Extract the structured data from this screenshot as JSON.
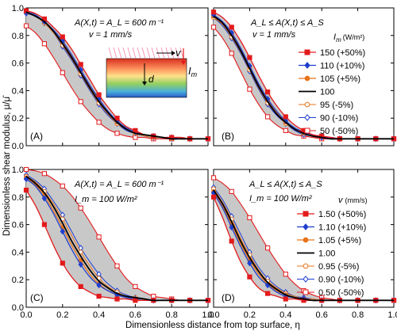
{
  "figure": {
    "ylabel": "Dimensionless shear modulus, μ/μ̄",
    "xlabel": "Dimensionless distance from top surface, η"
  },
  "colors": {
    "red": "#e31a1c",
    "blue": "#1f3fcf",
    "orange": "#e8731a",
    "black": "#000000",
    "band": "#c8c8c8"
  },
  "legend_top": {
    "title": "I",
    "title_sub": "m",
    "title_unit": "(W/m²)",
    "entries": [
      {
        "label": "150 (+50%)",
        "color": "#e31a1c",
        "marker": "square-filled"
      },
      {
        "label": "110 (+10%)",
        "color": "#1f3fcf",
        "marker": "diamond-filled"
      },
      {
        "label": "105   (+5%)",
        "color": "#e8731a",
        "marker": "circle-filled"
      },
      {
        "label": "100",
        "color": "#000000",
        "marker": "line"
      },
      {
        "label": "95   (-5%)",
        "color": "#e8731a",
        "marker": "circle-open"
      },
      {
        "label": "90  (-10%)",
        "color": "#1f3fcf",
        "marker": "diamond-open"
      },
      {
        "label": "50  (-50%)",
        "color": "#e31a1c",
        "marker": "square-open"
      }
    ]
  },
  "legend_bottom": {
    "title": "v",
    "title_unit": "(mm/s)",
    "entries": [
      {
        "label": "1.50 (+50%)",
        "color": "#e31a1c",
        "marker": "square-filled"
      },
      {
        "label": "1.10 (+10%)",
        "color": "#1f3fcf",
        "marker": "diamond-filled"
      },
      {
        "label": "1.05   (+5%)",
        "color": "#e8731a",
        "marker": "circle-filled"
      },
      {
        "label": "1.00",
        "color": "#000000",
        "marker": "line"
      },
      {
        "label": "0.95   (-5%)",
        "color": "#e8731a",
        "marker": "circle-open"
      },
      {
        "label": "0.90  (-10%)",
        "color": "#1f3fcf",
        "marker": "diamond-open"
      },
      {
        "label": "0.50  (-50%)",
        "color": "#e31a1c",
        "marker": "square-open"
      }
    ]
  },
  "inset": {
    "v_label": "v",
    "d_label": "d",
    "i_label": "I",
    "i_sub": "m"
  },
  "chart_data": [
    {
      "type": "line",
      "panel_label": "(A)",
      "annotation_1": "A(X,t) = A_L = 600 m⁻¹",
      "annotation_2": "v = 1 mm/s",
      "xlim": [
        0,
        1
      ],
      "ylim": [
        0,
        1
      ],
      "xticks": [
        "0.0",
        "0.2",
        "0.4",
        "0.6",
        "0.8",
        "1.0"
      ],
      "yticks": [
        "0.0",
        "0.2",
        "0.4",
        "0.6",
        "0.8",
        "1.0"
      ],
      "x": [
        0,
        0.05,
        0.1,
        0.15,
        0.2,
        0.25,
        0.3,
        0.35,
        0.4,
        0.45,
        0.5,
        0.55,
        0.6,
        0.65,
        0.7,
        0.75,
        0.8,
        0.85,
        0.9,
        0.95,
        1.0
      ],
      "series": [
        {
          "name": "150 (+50%)",
          "values": [
            0.98,
            0.96,
            0.92,
            0.86,
            0.79,
            0.7,
            0.59,
            0.48,
            0.37,
            0.28,
            0.2,
            0.14,
            0.11,
            0.08,
            0.07,
            0.06,
            0.06,
            0.06,
            0.05,
            0.05,
            0.05
          ]
        },
        {
          "name": "110 (+10%)",
          "values": [
            0.97,
            0.95,
            0.9,
            0.84,
            0.76,
            0.66,
            0.55,
            0.44,
            0.34,
            0.25,
            0.18,
            0.13,
            0.1,
            0.08,
            0.07,
            0.06,
            0.06,
            0.05,
            0.05,
            0.05,
            0.05
          ]
        },
        {
          "name": "105 (+5%)",
          "values": [
            0.97,
            0.95,
            0.9,
            0.84,
            0.75,
            0.65,
            0.54,
            0.43,
            0.33,
            0.24,
            0.17,
            0.13,
            0.1,
            0.08,
            0.07,
            0.06,
            0.06,
            0.05,
            0.05,
            0.05,
            0.05
          ]
        },
        {
          "name": "100",
          "values": [
            0.97,
            0.94,
            0.9,
            0.83,
            0.74,
            0.64,
            0.53,
            0.42,
            0.32,
            0.24,
            0.17,
            0.12,
            0.09,
            0.08,
            0.07,
            0.06,
            0.05,
            0.05,
            0.05,
            0.05,
            0.05
          ]
        },
        {
          "name": "95 (-5%)",
          "values": [
            0.97,
            0.94,
            0.89,
            0.82,
            0.73,
            0.63,
            0.52,
            0.41,
            0.31,
            0.23,
            0.16,
            0.12,
            0.09,
            0.07,
            0.06,
            0.06,
            0.05,
            0.05,
            0.05,
            0.05,
            0.05
          ]
        },
        {
          "name": "90 (-10%)",
          "values": [
            0.96,
            0.94,
            0.89,
            0.82,
            0.72,
            0.62,
            0.51,
            0.4,
            0.3,
            0.22,
            0.16,
            0.11,
            0.09,
            0.07,
            0.06,
            0.06,
            0.05,
            0.05,
            0.05,
            0.05,
            0.05
          ]
        },
        {
          "name": "50 (-50%)",
          "values": [
            0.87,
            0.82,
            0.74,
            0.64,
            0.53,
            0.42,
            0.32,
            0.24,
            0.17,
            0.12,
            0.09,
            0.07,
            0.06,
            0.06,
            0.05,
            0.05,
            0.05,
            0.05,
            0.05,
            0.05,
            0.05
          ]
        }
      ]
    },
    {
      "type": "line",
      "panel_label": "(B)",
      "annotation_1": "A_L ≤ A(X,t) ≤ A_S",
      "annotation_2": "v = 1 mm/s",
      "xlim": [
        0,
        1
      ],
      "ylim": [
        0,
        1
      ],
      "xticks": [
        "0.0",
        "0.2",
        "0.4",
        "0.6",
        "0.8",
        "1.0"
      ],
      "yticks": [
        "0.0",
        "0.2",
        "0.4",
        "0.6",
        "0.8",
        "1.0"
      ],
      "x": [
        0,
        0.05,
        0.1,
        0.15,
        0.2,
        0.25,
        0.3,
        0.35,
        0.4,
        0.45,
        0.5,
        0.55,
        0.6,
        0.65,
        0.7,
        0.75,
        0.8,
        0.85,
        0.9,
        0.95,
        1.0
      ],
      "series": [
        {
          "name": "150 (+50%)",
          "values": [
            0.97,
            0.93,
            0.86,
            0.76,
            0.64,
            0.51,
            0.39,
            0.29,
            0.21,
            0.15,
            0.11,
            0.08,
            0.07,
            0.06,
            0.05,
            0.05,
            0.05,
            0.05,
            0.05,
            0.05,
            0.05
          ]
        },
        {
          "name": "110 (+10%)",
          "values": [
            0.95,
            0.9,
            0.82,
            0.71,
            0.58,
            0.45,
            0.34,
            0.25,
            0.18,
            0.13,
            0.1,
            0.08,
            0.06,
            0.06,
            0.05,
            0.05,
            0.05,
            0.05,
            0.05,
            0.05,
            0.05
          ]
        },
        {
          "name": "105 (+5%)",
          "values": [
            0.94,
            0.89,
            0.81,
            0.7,
            0.57,
            0.44,
            0.33,
            0.24,
            0.17,
            0.12,
            0.09,
            0.07,
            0.06,
            0.06,
            0.05,
            0.05,
            0.05,
            0.05,
            0.05,
            0.05,
            0.05
          ]
        },
        {
          "name": "100",
          "values": [
            0.94,
            0.89,
            0.8,
            0.69,
            0.56,
            0.43,
            0.32,
            0.23,
            0.17,
            0.12,
            0.09,
            0.07,
            0.06,
            0.05,
            0.05,
            0.05,
            0.05,
            0.05,
            0.05,
            0.05,
            0.05
          ]
        },
        {
          "name": "95 (-5%)",
          "values": [
            0.93,
            0.88,
            0.79,
            0.68,
            0.55,
            0.42,
            0.31,
            0.23,
            0.16,
            0.12,
            0.09,
            0.07,
            0.06,
            0.05,
            0.05,
            0.05,
            0.05,
            0.05,
            0.05,
            0.05,
            0.05
          ]
        },
        {
          "name": "90 (-10%)",
          "values": [
            0.93,
            0.87,
            0.78,
            0.67,
            0.54,
            0.41,
            0.3,
            0.22,
            0.16,
            0.11,
            0.08,
            0.07,
            0.06,
            0.05,
            0.05,
            0.05,
            0.05,
            0.05,
            0.05,
            0.05,
            0.05
          ]
        },
        {
          "name": "50 (-50%)",
          "values": [
            0.86,
            0.78,
            0.67,
            0.54,
            0.41,
            0.3,
            0.21,
            0.15,
            0.11,
            0.08,
            0.07,
            0.06,
            0.05,
            0.05,
            0.05,
            0.05,
            0.05,
            0.05,
            0.05,
            0.05,
            0.05
          ]
        }
      ]
    },
    {
      "type": "line",
      "panel_label": "(C)",
      "annotation_1": "A(X,t) = A_L = 600 m⁻¹",
      "annotation_2": "I_m = 100 W/m²",
      "xlim": [
        0,
        1
      ],
      "ylim": [
        0,
        1
      ],
      "xticks": [
        "0.0",
        "0.2",
        "0.4",
        "0.6",
        "0.8",
        "1.0"
      ],
      "yticks": [
        "0.0",
        "0.2",
        "0.4",
        "0.6",
        "0.8",
        "1.0"
      ],
      "x": [
        0,
        0.05,
        0.1,
        0.15,
        0.2,
        0.25,
        0.3,
        0.35,
        0.4,
        0.45,
        0.5,
        0.55,
        0.6,
        0.65,
        0.7,
        0.75,
        0.8,
        0.85,
        0.9,
        0.95,
        1.0
      ],
      "series": [
        {
          "name": "1.50 (+50%)",
          "values": [
            0.85,
            0.74,
            0.6,
            0.45,
            0.32,
            0.22,
            0.15,
            0.11,
            0.08,
            0.07,
            0.06,
            0.06,
            0.05,
            0.05,
            0.05,
            0.05,
            0.05,
            0.05,
            0.05,
            0.05,
            0.05
          ]
        },
        {
          "name": "1.10 (+10%)",
          "values": [
            0.93,
            0.88,
            0.79,
            0.68,
            0.55,
            0.42,
            0.31,
            0.22,
            0.16,
            0.12,
            0.09,
            0.07,
            0.06,
            0.06,
            0.05,
            0.05,
            0.05,
            0.05,
            0.05,
            0.05,
            0.05
          ]
        },
        {
          "name": "1.05 (+5%)",
          "values": [
            0.94,
            0.89,
            0.81,
            0.7,
            0.58,
            0.45,
            0.34,
            0.24,
            0.17,
            0.12,
            0.09,
            0.07,
            0.06,
            0.06,
            0.05,
            0.05,
            0.05,
            0.05,
            0.05,
            0.05,
            0.05
          ]
        },
        {
          "name": "1.00",
          "values": [
            0.95,
            0.9,
            0.83,
            0.73,
            0.61,
            0.48,
            0.37,
            0.27,
            0.19,
            0.14,
            0.1,
            0.08,
            0.07,
            0.06,
            0.05,
            0.05,
            0.05,
            0.05,
            0.05,
            0.05,
            0.05
          ]
        },
        {
          "name": "0.95 (-5%)",
          "values": [
            0.95,
            0.91,
            0.84,
            0.75,
            0.64,
            0.52,
            0.4,
            0.3,
            0.21,
            0.15,
            0.11,
            0.08,
            0.07,
            0.06,
            0.05,
            0.05,
            0.05,
            0.05,
            0.05,
            0.05,
            0.05
          ]
        },
        {
          "name": "0.90 (-10%)",
          "values": [
            0.96,
            0.92,
            0.86,
            0.77,
            0.67,
            0.55,
            0.43,
            0.33,
            0.24,
            0.17,
            0.12,
            0.09,
            0.07,
            0.06,
            0.05,
            0.05,
            0.05,
            0.05,
            0.05,
            0.05,
            0.05
          ]
        },
        {
          "name": "0.50 (-50%)",
          "values": [
            1.0,
            0.99,
            0.97,
            0.93,
            0.88,
            0.81,
            0.72,
            0.62,
            0.51,
            0.4,
            0.3,
            0.21,
            0.15,
            0.11,
            0.08,
            0.07,
            0.06,
            0.05,
            0.05,
            0.05,
            0.05
          ]
        }
      ]
    },
    {
      "type": "line",
      "panel_label": "(D)",
      "annotation_1": "A_L ≤ A(X,t) ≤ A_S",
      "annotation_2": "I_m = 100 W/m²",
      "xlim": [
        0,
        1
      ],
      "ylim": [
        0,
        1
      ],
      "xticks": [
        "0.0",
        "0.2",
        "0.4",
        "0.6",
        "0.8",
        "1.0"
      ],
      "yticks": [
        "0.0",
        "0.2",
        "0.4",
        "0.6",
        "0.8",
        "1.0"
      ],
      "x": [
        0,
        0.05,
        0.1,
        0.15,
        0.2,
        0.25,
        0.3,
        0.35,
        0.4,
        0.45,
        0.5,
        0.55,
        0.6,
        0.65,
        0.7,
        0.75,
        0.8,
        0.85,
        0.9,
        0.95,
        1.0
      ],
      "series": [
        {
          "name": "1.50 (+50%)",
          "values": [
            0.8,
            0.65,
            0.48,
            0.33,
            0.22,
            0.14,
            0.1,
            0.08,
            0.06,
            0.06,
            0.05,
            0.05,
            0.05,
            0.05,
            0.05,
            0.05,
            0.05,
            0.05,
            0.05,
            0.05,
            0.05
          ]
        },
        {
          "name": "1.10 (+10%)",
          "values": [
            0.83,
            0.72,
            0.58,
            0.44,
            0.32,
            0.22,
            0.16,
            0.11,
            0.08,
            0.07,
            0.06,
            0.05,
            0.05,
            0.05,
            0.05,
            0.05,
            0.05,
            0.05,
            0.05,
            0.05,
            0.05
          ]
        },
        {
          "name": "1.05 (+5%)",
          "values": [
            0.84,
            0.73,
            0.6,
            0.46,
            0.34,
            0.24,
            0.17,
            0.12,
            0.09,
            0.07,
            0.06,
            0.05,
            0.05,
            0.05,
            0.05,
            0.05,
            0.05,
            0.05,
            0.05,
            0.05,
            0.05
          ]
        },
        {
          "name": "1.00",
          "values": [
            0.85,
            0.75,
            0.62,
            0.48,
            0.36,
            0.26,
            0.18,
            0.13,
            0.09,
            0.07,
            0.06,
            0.05,
            0.05,
            0.05,
            0.05,
            0.05,
            0.05,
            0.05,
            0.05,
            0.05,
            0.05
          ]
        },
        {
          "name": "0.95 (-5%)",
          "values": [
            0.86,
            0.76,
            0.64,
            0.5,
            0.38,
            0.27,
            0.19,
            0.14,
            0.1,
            0.08,
            0.06,
            0.06,
            0.05,
            0.05,
            0.05,
            0.05,
            0.05,
            0.05,
            0.05,
            0.05,
            0.05
          ]
        },
        {
          "name": "0.90 (-10%)",
          "values": [
            0.87,
            0.78,
            0.66,
            0.53,
            0.4,
            0.29,
            0.21,
            0.15,
            0.11,
            0.08,
            0.07,
            0.06,
            0.05,
            0.05,
            0.05,
            0.05,
            0.05,
            0.05,
            0.05,
            0.05,
            0.05
          ]
        },
        {
          "name": "0.50 (-50%)",
          "values": [
            0.94,
            0.9,
            0.84,
            0.75,
            0.65,
            0.54,
            0.43,
            0.33,
            0.24,
            0.17,
            0.12,
            0.09,
            0.07,
            0.06,
            0.05,
            0.05,
            0.05,
            0.05,
            0.05,
            0.05,
            0.05
          ]
        }
      ]
    }
  ]
}
